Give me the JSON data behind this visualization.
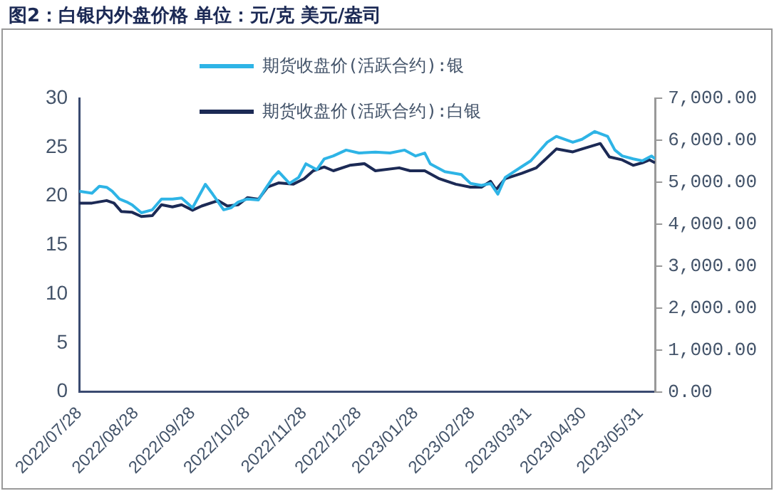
{
  "chart_data": {
    "type": "line",
    "title": "图2：白银内外盘价格 单位：元/克 美元/盎司",
    "legend": "top",
    "xlim": [
      "2022-07-28",
      "2023-06-08"
    ],
    "xticks": [
      {
        "value": "2022-07-28",
        "label": "2022/07/28"
      },
      {
        "value": "2022-08-28",
        "label": "2022/08/28"
      },
      {
        "value": "2022-09-28",
        "label": "2022/09/28"
      },
      {
        "value": "2022-10-28",
        "label": "2022/10/28"
      },
      {
        "value": "2022-11-28",
        "label": "2022/11/28"
      },
      {
        "value": "2022-12-28",
        "label": "2022/12/28"
      },
      {
        "value": "2023-01-28",
        "label": "2023/01/28"
      },
      {
        "value": "2023-02-28",
        "label": "2023/02/28"
      },
      {
        "value": "2023-03-31",
        "label": "2023/03/31"
      },
      {
        "value": "2023-04-30",
        "label": "2023/04/30"
      },
      {
        "value": "2023-05-31",
        "label": "2023/05/31"
      }
    ],
    "ylim": [
      0,
      30
    ],
    "yticks": [
      0,
      5,
      10,
      15,
      20,
      25,
      30
    ],
    "y2lim": [
      0,
      7000
    ],
    "y2ticks": [
      {
        "value": 0,
        "label": "0.00"
      },
      {
        "value": 1000,
        "label": "1,000.00"
      },
      {
        "value": 2000,
        "label": "2,000.00"
      },
      {
        "value": 3000,
        "label": "3,000.00"
      },
      {
        "value": 4000,
        "label": "4,000.00"
      },
      {
        "value": 5000,
        "label": "5,000.00"
      },
      {
        "value": 6000,
        "label": "6,000.00"
      },
      {
        "value": 7000,
        "label": "7,000.00"
      }
    ],
    "series": [
      {
        "name": "期货收盘价(活跃合约):银",
        "color": "#2eb4e6",
        "x": [
          "2022-07-28",
          "2022-08-04",
          "2022-08-08",
          "2022-08-12",
          "2022-08-15",
          "2022-08-19",
          "2022-08-23",
          "2022-08-26",
          "2022-08-31",
          "2022-09-06",
          "2022-09-11",
          "2022-09-17",
          "2022-09-22",
          "2022-09-28",
          "2022-10-05",
          "2022-10-09",
          "2022-10-15",
          "2022-10-19",
          "2022-10-23",
          "2022-10-28",
          "2022-11-03",
          "2022-11-06",
          "2022-11-11",
          "2022-11-14",
          "2022-11-20",
          "2022-11-25",
          "2022-11-29",
          "2022-12-05",
          "2022-12-09",
          "2022-12-14",
          "2022-12-21",
          "2022-12-28",
          "2023-01-06",
          "2023-01-14",
          "2023-01-22",
          "2023-01-28",
          "2023-02-02",
          "2023-02-05",
          "2023-02-13",
          "2023-02-22",
          "2023-02-27",
          "2023-03-05",
          "2023-03-10",
          "2023-03-14",
          "2023-03-18",
          "2023-03-27",
          "2023-04-01",
          "2023-04-10",
          "2023-04-15",
          "2023-04-24",
          "2023-04-29",
          "2023-05-06",
          "2023-05-13",
          "2023-05-17",
          "2023-05-21",
          "2023-05-27",
          "2023-06-01",
          "2023-06-06",
          "2023-06-08"
        ],
        "values": [
          20.5,
          20.3,
          21.0,
          20.9,
          20.5,
          19.7,
          19.4,
          19.1,
          18.3,
          18.6,
          19.7,
          19.7,
          19.8,
          18.8,
          21.2,
          20.2,
          18.6,
          18.8,
          19.4,
          19.7,
          19.6,
          20.5,
          21.9,
          22.5,
          21.3,
          21.9,
          23.3,
          22.7,
          23.8,
          24.1,
          24.7,
          24.4,
          24.5,
          24.4,
          24.7,
          24.1,
          24.4,
          23.3,
          22.5,
          22.2,
          21.3,
          21.1,
          21.3,
          20.2,
          21.9,
          23.0,
          23.6,
          25.5,
          26.1,
          25.5,
          25.8,
          26.6,
          26.1,
          24.7,
          24.1,
          23.8,
          23.6,
          24.1,
          23.8
        ]
      },
      {
        "name": "期货收盘价(活跃合约):白银",
        "color": "#1c2a55",
        "axis": "y2",
        "x": [
          "2022-07-28",
          "2022-08-04",
          "2022-08-12",
          "2022-08-16",
          "2022-08-20",
          "2022-08-26",
          "2022-08-31",
          "2022-09-06",
          "2022-09-11",
          "2022-09-17",
          "2022-09-22",
          "2022-09-28",
          "2022-10-03",
          "2022-10-12",
          "2022-10-17",
          "2022-10-23",
          "2022-10-28",
          "2022-11-03",
          "2022-11-08",
          "2022-11-14",
          "2022-11-22",
          "2022-11-28",
          "2022-12-03",
          "2022-12-09",
          "2022-12-14",
          "2022-12-23",
          "2022-12-31",
          "2023-01-06",
          "2023-01-19",
          "2023-01-25",
          "2023-02-02",
          "2023-02-10",
          "2023-02-19",
          "2023-02-27",
          "2023-03-05",
          "2023-03-10",
          "2023-03-13",
          "2023-03-18",
          "2023-03-27",
          "2023-04-04",
          "2023-04-15",
          "2023-04-24",
          "2023-04-29",
          "2023-05-09",
          "2023-05-14",
          "2023-05-21",
          "2023-05-27",
          "2023-06-01",
          "2023-06-05",
          "2023-06-08"
        ],
        "values": [
          4500,
          4500,
          4560,
          4500,
          4300,
          4280,
          4180,
          4200,
          4460,
          4410,
          4460,
          4330,
          4430,
          4560,
          4430,
          4460,
          4630,
          4590,
          4880,
          4980,
          4950,
          5080,
          5270,
          5360,
          5270,
          5400,
          5440,
          5270,
          5340,
          5270,
          5270,
          5080,
          4950,
          4880,
          4880,
          5020,
          4820,
          5080,
          5210,
          5340,
          5790,
          5720,
          5790,
          5920,
          5600,
          5530,
          5400,
          5460,
          5530,
          5460
        ]
      }
    ]
  }
}
